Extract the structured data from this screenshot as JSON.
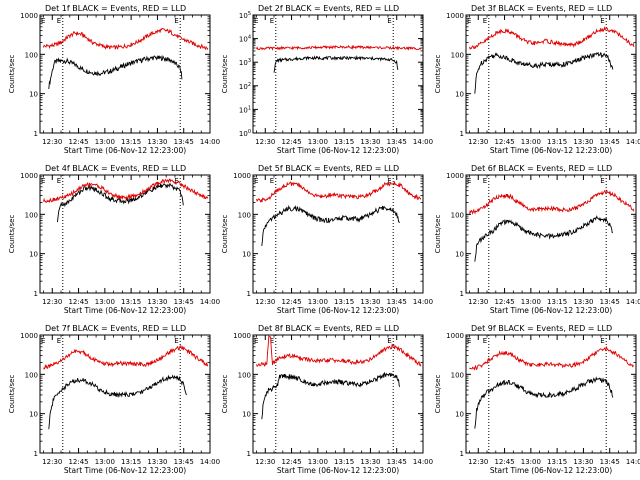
{
  "figure": {
    "time_label_date": "06-Nov-12 12:23:00",
    "colors": {
      "events": "#000000",
      "lld": "#e00000",
      "background": "#ffffff"
    }
  },
  "chart_data": [
    {
      "type": "line",
      "title": "Det 1f BLACK = Events, RED = LLD",
      "xlabel": "Start Time (06-Nov-12 12:23:00)",
      "ylabel": "Counts/sec",
      "yscale": "log",
      "ylim": [
        1,
        1000
      ],
      "yticks": [
        "1",
        "10",
        "100",
        "1000"
      ],
      "xticks": [
        "12:30",
        "12:45",
        "13:00",
        "13:15",
        "13:30",
        "13:45",
        "14:00"
      ],
      "xlim_min": [
        0,
        97
      ],
      "markers_min": [
        13,
        80
      ],
      "marker_labels": [
        "E",
        "E"
      ],
      "series": [
        {
          "name": "Events",
          "color": "#000000",
          "x": [
            5,
            8,
            10,
            15,
            20,
            25,
            30,
            35,
            40,
            45,
            50,
            55,
            60,
            65,
            70,
            75,
            80,
            81
          ],
          "y": [
            15,
            60,
            68,
            68,
            55,
            40,
            34,
            33,
            37,
            45,
            56,
            66,
            75,
            82,
            80,
            70,
            45,
            25
          ]
        },
        {
          "name": "LLD",
          "color": "#e00000",
          "x": [
            2,
            8,
            12,
            16,
            20,
            24,
            30,
            36,
            40,
            44,
            50,
            56,
            60,
            64,
            70,
            74,
            80,
            86,
            90,
            96
          ],
          "y": [
            160,
            170,
            200,
            280,
            350,
            320,
            200,
            160,
            150,
            150,
            165,
            210,
            270,
            340,
            420,
            380,
            260,
            200,
            170,
            140
          ]
        }
      ]
    },
    {
      "type": "line",
      "title": "Det 2f BLACK = Events, RED = LLD",
      "xlabel": "Start Time (06-Nov-12 12:23:00)",
      "ylabel": "Counts/sec",
      "yscale": "log",
      "ylim": [
        1,
        100000
      ],
      "yticks": [
        "10^0",
        "10^1",
        "10^2",
        "10^3",
        "10^4",
        "10^5"
      ],
      "xticks": [
        "12:30",
        "12:45",
        "13:00",
        "13:15",
        "13:30",
        "13:45",
        "14:00"
      ],
      "xlim_min": [
        0,
        97
      ],
      "markers_min": [
        13,
        80
      ],
      "marker_labels": [
        "E",
        "E"
      ],
      "series": [
        {
          "name": "Events",
          "color": "#000000",
          "x": [
            12,
            13,
            14,
            20,
            30,
            40,
            50,
            60,
            70,
            78,
            80,
            82,
            83
          ],
          "y": [
            400,
            1000,
            1200,
            1300,
            1500,
            1500,
            1500,
            1500,
            1400,
            1300,
            1200,
            1000,
            300
          ]
        },
        {
          "name": "LLD",
          "color": "#e00000",
          "x": [
            2,
            10,
            20,
            30,
            40,
            50,
            60,
            70,
            80,
            90,
            96
          ],
          "y": [
            3800,
            3900,
            4000,
            4100,
            4300,
            4400,
            4300,
            4200,
            4000,
            3900,
            3800
          ]
        }
      ]
    },
    {
      "type": "line",
      "title": "Det 3f BLACK = Events, RED = LLD",
      "xlabel": "Start Time (06-Nov-12 12:23:00)",
      "ylabel": "Counts/sec",
      "yscale": "log",
      "ylim": [
        1,
        1000
      ],
      "yticks": [
        "1",
        "10",
        "100",
        "1000"
      ],
      "xticks": [
        "12:30",
        "12:45",
        "13:00",
        "13:15",
        "13:30",
        "13:45",
        "14:00"
      ],
      "xlim_min": [
        0,
        97
      ],
      "markers_min": [
        13,
        80
      ],
      "marker_labels": [
        "E",
        "E"
      ],
      "series": [
        {
          "name": "Events",
          "color": "#000000",
          "x": [
            5,
            6,
            8,
            12,
            16,
            20,
            25,
            30,
            35,
            40,
            45,
            50,
            55,
            60,
            65,
            70,
            75,
            80,
            82,
            84
          ],
          "y": [
            10,
            30,
            55,
            80,
            95,
            90,
            75,
            60,
            55,
            52,
            55,
            56,
            55,
            60,
            75,
            90,
            100,
            90,
            70,
            35
          ]
        },
        {
          "name": "LLD",
          "color": "#e00000",
          "x": [
            2,
            6,
            10,
            15,
            20,
            25,
            30,
            35,
            40,
            45,
            50,
            55,
            60,
            65,
            70,
            75,
            80,
            85,
            90,
            96
          ],
          "y": [
            150,
            160,
            200,
            300,
            400,
            380,
            280,
            200,
            190,
            220,
            200,
            180,
            170,
            200,
            280,
            400,
            450,
            380,
            250,
            160
          ]
        }
      ]
    },
    {
      "type": "line",
      "title": "Det 4f BLACK = Events, RED = LLD",
      "xlabel": "Start Time (06-Nov-12 12:23:00)",
      "ylabel": "Counts/sec",
      "yscale": "log",
      "ylim": [
        1,
        1000
      ],
      "yticks": [
        "1",
        "10",
        "100",
        "1000"
      ],
      "xticks": [
        "12:30",
        "12:45",
        "13:00",
        "13:15",
        "13:30",
        "13:45",
        "14:00"
      ],
      "xlim_min": [
        0,
        97
      ],
      "markers_min": [
        13,
        80
      ],
      "marker_labels": [
        "E",
        "E"
      ],
      "series": [
        {
          "name": "Events",
          "color": "#000000",
          "x": [
            10,
            11,
            12,
            16,
            20,
            25,
            30,
            35,
            40,
            45,
            50,
            55,
            60,
            65,
            70,
            75,
            80,
            82
          ],
          "y": [
            60,
            150,
            170,
            200,
            300,
            450,
            470,
            350,
            250,
            220,
            220,
            250,
            350,
            450,
            550,
            520,
            400,
            170
          ]
        },
        {
          "name": "LLD",
          "color": "#e00000",
          "x": [
            2,
            6,
            10,
            16,
            20,
            25,
            30,
            35,
            40,
            45,
            50,
            55,
            60,
            65,
            70,
            75,
            80,
            85,
            90,
            96
          ],
          "y": [
            220,
            230,
            250,
            290,
            380,
            550,
            600,
            480,
            330,
            280,
            270,
            300,
            400,
            550,
            700,
            720,
            600,
            440,
            330,
            250
          ]
        }
      ]
    },
    {
      "type": "line",
      "title": "Det 5f BLACK = Events, RED = LLD",
      "xlabel": "Start Time (06-Nov-12 12:23:00)",
      "ylabel": "Counts/sec",
      "yscale": "log",
      "ylim": [
        1,
        1000
      ],
      "yticks": [
        "1",
        "10",
        "100",
        "1000"
      ],
      "xticks": [
        "12:30",
        "12:45",
        "13:00",
        "13:15",
        "13:30",
        "13:45",
        "14:00"
      ],
      "xlim_min": [
        0,
        97
      ],
      "markers_min": [
        13,
        80
      ],
      "marker_labels": [
        "E",
        "E"
      ],
      "series": [
        {
          "name": "Events",
          "color": "#000000",
          "x": [
            5,
            6,
            8,
            12,
            16,
            20,
            25,
            30,
            35,
            40,
            45,
            50,
            55,
            60,
            65,
            70,
            75,
            80,
            82,
            84
          ],
          "y": [
            15,
            40,
            60,
            85,
            110,
            140,
            140,
            110,
            80,
            70,
            72,
            80,
            80,
            75,
            90,
            120,
            150,
            130,
            100,
            55
          ]
        },
        {
          "name": "LLD",
          "color": "#e00000",
          "x": [
            2,
            6,
            10,
            15,
            20,
            25,
            30,
            35,
            40,
            45,
            50,
            55,
            60,
            65,
            70,
            75,
            80,
            85,
            90,
            96
          ],
          "y": [
            220,
            230,
            280,
            450,
            600,
            580,
            420,
            300,
            280,
            320,
            300,
            280,
            270,
            300,
            400,
            560,
            640,
            520,
            320,
            240
          ]
        }
      ]
    },
    {
      "type": "line",
      "title": "Det 6f BLACK = Events, RED = LLD",
      "xlabel": "Start Time (06-Nov-12 12:23:00)",
      "ylabel": "Counts/sec",
      "yscale": "log",
      "ylim": [
        1,
        1000
      ],
      "yticks": [
        "1",
        "10",
        "100",
        "1000"
      ],
      "xticks": [
        "12:30",
        "12:45",
        "13:00",
        "13:15",
        "13:30",
        "13:45",
        "14:00"
      ],
      "xlim_min": [
        0,
        97
      ],
      "markers_min": [
        13,
        80
      ],
      "marker_labels": [
        "E",
        "E"
      ],
      "series": [
        {
          "name": "Events",
          "color": "#000000",
          "x": [
            5,
            6,
            8,
            12,
            16,
            20,
            25,
            30,
            35,
            40,
            45,
            50,
            55,
            60,
            65,
            70,
            75,
            80,
            82,
            84
          ],
          "y": [
            6,
            15,
            22,
            30,
            40,
            60,
            65,
            50,
            36,
            30,
            28,
            28,
            30,
            35,
            45,
            60,
            80,
            75,
            55,
            30
          ]
        },
        {
          "name": "LLD",
          "color": "#e00000",
          "x": [
            2,
            6,
            10,
            15,
            20,
            25,
            30,
            35,
            40,
            45,
            50,
            55,
            60,
            65,
            70,
            75,
            80,
            85,
            90,
            96
          ],
          "y": [
            110,
            120,
            150,
            230,
            300,
            290,
            200,
            140,
            130,
            140,
            140,
            130,
            130,
            160,
            220,
            320,
            380,
            300,
            200,
            130
          ]
        }
      ]
    },
    {
      "type": "line",
      "title": "Det 7f BLACK = Events, RED = LLD",
      "xlabel": "Start Time (06-Nov-12 12:23:00)",
      "ylabel": "Counts/sec",
      "yscale": "log",
      "ylim": [
        1,
        1000
      ],
      "yticks": [
        "1",
        "10",
        "100",
        "1000"
      ],
      "xticks": [
        "12:30",
        "12:45",
        "13:00",
        "13:15",
        "13:30",
        "13:45",
        "14:00"
      ],
      "xlim_min": [
        0,
        97
      ],
      "markers_min": [
        13,
        80
      ],
      "marker_labels": [
        "E",
        "E"
      ],
      "series": [
        {
          "name": "Events",
          "color": "#000000",
          "x": [
            5,
            6,
            8,
            12,
            16,
            20,
            25,
            30,
            35,
            40,
            45,
            50,
            55,
            60,
            65,
            70,
            75,
            80,
            82,
            84
          ],
          "y": [
            4,
            12,
            25,
            40,
            55,
            70,
            72,
            55,
            38,
            32,
            30,
            30,
            32,
            40,
            55,
            75,
            85,
            75,
            55,
            25
          ]
        },
        {
          "name": "LLD",
          "color": "#e00000",
          "x": [
            2,
            6,
            10,
            15,
            20,
            25,
            30,
            35,
            40,
            45,
            50,
            55,
            60,
            65,
            70,
            75,
            80,
            85,
            90,
            96
          ],
          "y": [
            150,
            160,
            190,
            280,
            380,
            360,
            250,
            190,
            180,
            190,
            190,
            180,
            180,
            200,
            280,
            400,
            480,
            380,
            250,
            170
          ]
        }
      ]
    },
    {
      "type": "line",
      "title": "Det 8f BLACK = Events, RED = LLD",
      "xlabel": "Start Time (06-Nov-12 12:23:00)",
      "ylabel": "Counts/sec",
      "yscale": "log",
      "ylim": [
        1,
        1000
      ],
      "yticks": [
        "1",
        "10",
        "100",
        "1000"
      ],
      "xticks": [
        "12:30",
        "12:45",
        "13:00",
        "13:15",
        "13:30",
        "13:45",
        "14:00"
      ],
      "xlim_min": [
        0,
        97
      ],
      "markers_min": [
        13,
        80
      ],
      "marker_labels": [
        "E",
        "E"
      ],
      "series": [
        {
          "name": "Events",
          "color": "#000000",
          "x": [
            5,
            6,
            8,
            9,
            14,
            15,
            20,
            25,
            30,
            35,
            40,
            45,
            50,
            55,
            60,
            65,
            70,
            75,
            80,
            82,
            84
          ],
          "y": [
            8,
            20,
            35,
            40,
            50,
            90,
            90,
            80,
            65,
            55,
            60,
            65,
            62,
            58,
            55,
            60,
            75,
            95,
            100,
            85,
            50
          ]
        },
        {
          "name": "LLD",
          "color": "#e00000",
          "x": [
            2,
            6,
            8,
            9,
            10,
            11,
            12,
            15,
            20,
            25,
            30,
            35,
            40,
            45,
            50,
            55,
            60,
            65,
            70,
            75,
            80,
            85,
            90,
            96
          ],
          "y": [
            170,
            180,
            190,
            1000,
            1000,
            190,
            200,
            260,
            300,
            280,
            240,
            220,
            220,
            230,
            220,
            210,
            200,
            220,
            300,
            420,
            520,
            400,
            260,
            170
          ]
        }
      ]
    },
    {
      "type": "line",
      "title": "Det 9f BLACK = Events, RED = LLD",
      "xlabel": "Start Time (06-Nov-12 12:23:00)",
      "ylabel": "Counts/sec",
      "yscale": "log",
      "ylim": [
        1,
        1000
      ],
      "yticks": [
        "1",
        "10",
        "100",
        "1000"
      ],
      "xticks": [
        "12:30",
        "12:45",
        "13:00",
        "13:15",
        "13:30",
        "13:45",
        "14:00"
      ],
      "xlim_min": [
        0,
        97
      ],
      "markers_min": [
        13,
        80
      ],
      "marker_labels": [
        "E",
        "E"
      ],
      "series": [
        {
          "name": "Events",
          "color": "#000000",
          "x": [
            5,
            6,
            8,
            12,
            16,
            20,
            25,
            30,
            35,
            40,
            45,
            50,
            55,
            60,
            65,
            70,
            75,
            80,
            82,
            84
          ],
          "y": [
            4,
            12,
            22,
            35,
            45,
            60,
            62,
            50,
            36,
            30,
            29,
            30,
            32,
            38,
            50,
            65,
            75,
            65,
            50,
            25
          ]
        },
        {
          "name": "LLD",
          "color": "#e00000",
          "x": [
            2,
            6,
            10,
            15,
            20,
            25,
            30,
            35,
            40,
            45,
            50,
            55,
            60,
            65,
            70,
            75,
            80,
            85,
            90,
            96
          ],
          "y": [
            140,
            150,
            180,
            270,
            360,
            340,
            240,
            180,
            170,
            180,
            180,
            170,
            170,
            190,
            260,
            380,
            440,
            350,
            230,
            150
          ]
        }
      ]
    }
  ]
}
